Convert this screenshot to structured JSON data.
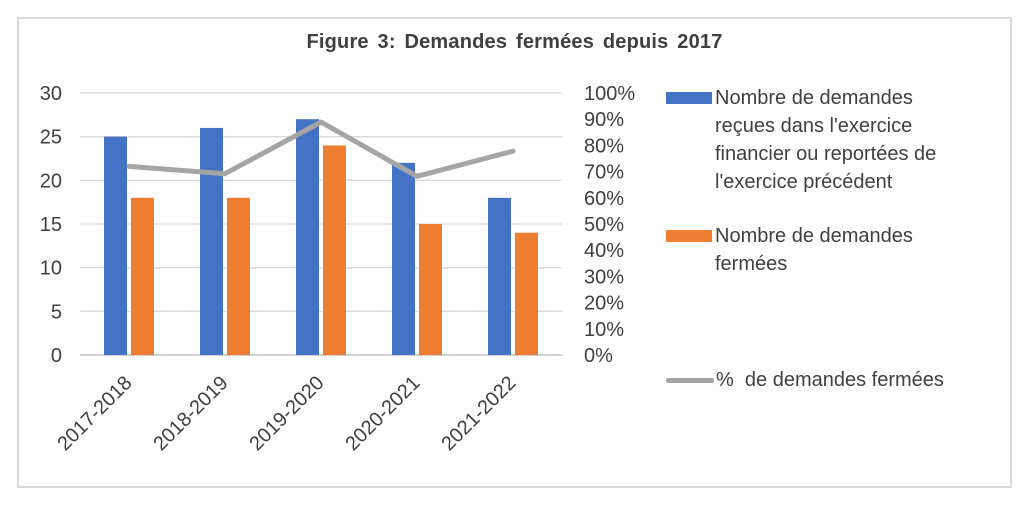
{
  "figure": {
    "title": "Figure 3: Demandes fermées depuis 2017"
  },
  "chart_data": {
    "type": "bar",
    "title": "Figure 3: Demandes fermées depuis 2017",
    "categories": [
      "2017-2018",
      "2018-2019",
      "2019-2020",
      "2020-2021",
      "2021-2022"
    ],
    "series": [
      {
        "name": "Nombre de demandes reçues dans l'exercice financier ou reportées de l'exercice précédent",
        "type": "bar",
        "axis": "left",
        "color": "#4472C4",
        "values": [
          25,
          26,
          27,
          22,
          18
        ]
      },
      {
        "name": "Nombre de demandes fermées",
        "type": "bar",
        "axis": "left",
        "color": "#ED7D31",
        "values": [
          18,
          18,
          24,
          15,
          14
        ]
      },
      {
        "name": "%  de demandes fermées",
        "type": "line",
        "axis": "right",
        "color": "#A5A5A5",
        "values": [
          72,
          69.2,
          88.9,
          68.2,
          77.8
        ]
      }
    ],
    "left_axis": {
      "min": 0,
      "max": 30,
      "step": 5,
      "tick_labels": [
        "30",
        "25",
        "20",
        "15",
        "10",
        "5",
        "0"
      ]
    },
    "right_axis": {
      "min": 0,
      "max": 100,
      "step": 10,
      "tick_labels": [
        "100%",
        "90%",
        "80%",
        "70%",
        "60%",
        "50%",
        "40%",
        "30%",
        "20%",
        "10%",
        "0%"
      ]
    },
    "grid": true,
    "legend_position": "right",
    "colors": {
      "grid": "#D9D9D9",
      "axis_line": "#C6C6C6",
      "axis_text": "#404040",
      "border": "#D9D9D9"
    }
  },
  "legend": {
    "items": [
      {
        "label": "Nombre de demandes reçues dans l'exercice financier ou reportées de l'exercice précédent",
        "swatch": "bar",
        "color": "#4472C4"
      },
      {
        "label": "Nombre de demandes fermées",
        "swatch": "bar",
        "color": "#ED7D31"
      },
      {
        "label": "%  de demandes fermées",
        "swatch": "line",
        "color": "#A5A5A5"
      }
    ]
  }
}
